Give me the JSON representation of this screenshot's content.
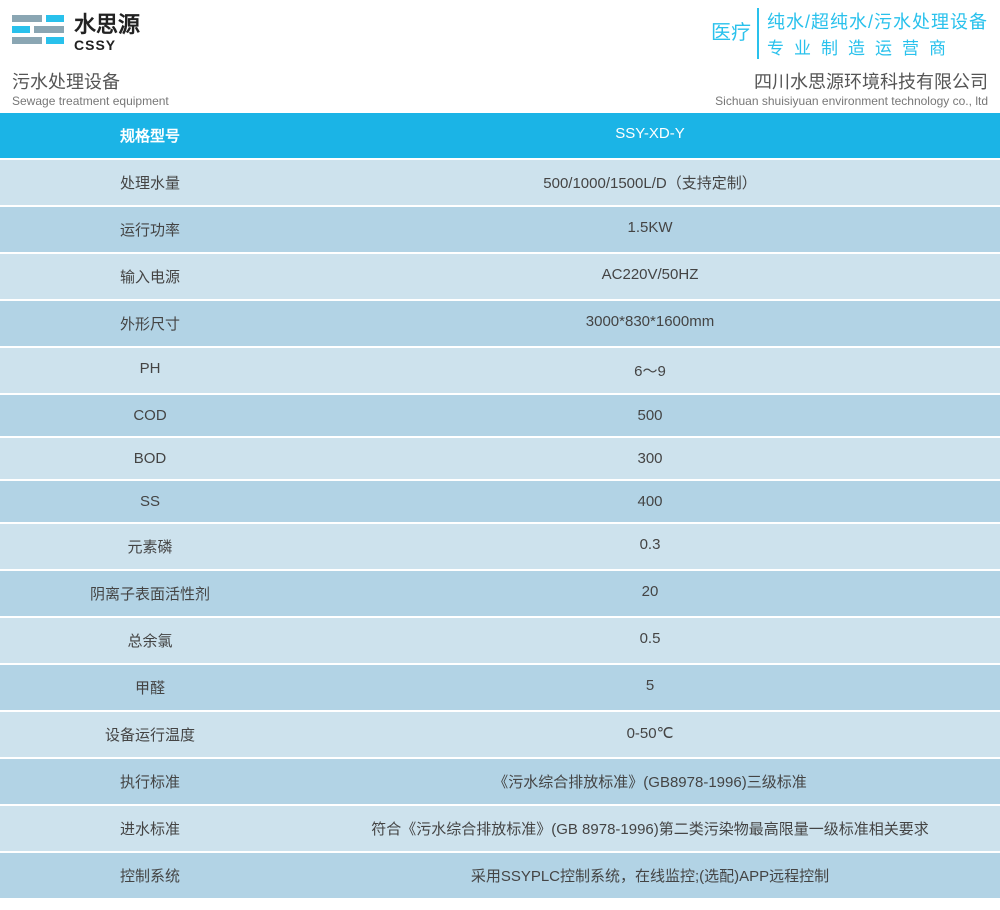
{
  "colors": {
    "header_accent": "#29c1ec",
    "table_header_bg": "#1bb4e6",
    "row_odd_bg": "#cde2ed",
    "row_even_bg": "#b2d3e5",
    "row_border": "#ffffff",
    "text_primary": "#444444",
    "text_secondary": "#777777"
  },
  "logo": {
    "cn": "水思源",
    "en": "CSSY"
  },
  "header_right": {
    "vert": "医疗",
    "line1": "纯水/超纯水/污水处理设备",
    "line2": "专业制造运营商"
  },
  "subheader": {
    "left_cn": "污水处理设备",
    "left_en": "Sewage treatment equipment",
    "right_cn": "四川水思源环境科技有限公司",
    "right_en": "Sichuan shuisiyuan environment technology co., ltd"
  },
  "table": {
    "header": {
      "label": "规格型号",
      "value": "SSY-XD-Y"
    },
    "rows": [
      {
        "label": "处理水量",
        "value": "500/1000/1500L/D（支持定制）"
      },
      {
        "label": "运行功率",
        "value": "1.5KW"
      },
      {
        "label": "输入电源",
        "value": "AC220V/50HZ"
      },
      {
        "label": "外形尺寸",
        "value": "3000*830*1600mm"
      },
      {
        "label": "PH",
        "value": "6～9"
      },
      {
        "label": "COD",
        "value": "500"
      },
      {
        "label": "BOD",
        "value": "300"
      },
      {
        "label": "SS",
        "value": "400",
        "tall": true
      },
      {
        "label": "元素磷",
        "value": "0.3"
      },
      {
        "label": "阴离子表面活性剂",
        "value": "20"
      },
      {
        "label": "总余氯",
        "value": "0.5"
      },
      {
        "label": "甲醛",
        "value": "5"
      },
      {
        "label": "设备运行温度",
        "value": "0-50℃"
      },
      {
        "label": "执行标准",
        "value": "《污水综合排放标准》(GB8978-1996)三级标准"
      },
      {
        "label": "进水标准",
        "value": "符合《污水综合排放标准》(GB 8978-1996)第二类污染物最高限量一级标准相关要求"
      },
      {
        "label": "控制系统",
        "value": "采用SSYPLC控制系统，在线监控;(选配)APP远程控制"
      }
    ]
  }
}
